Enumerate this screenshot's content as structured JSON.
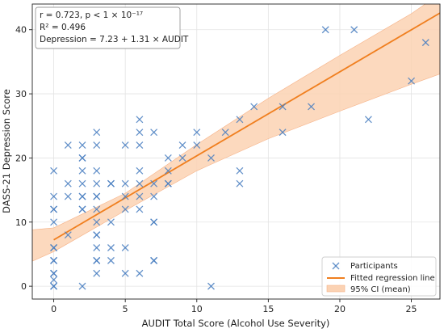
{
  "chart_data": {
    "type": "scatter",
    "xlabel": "AUDIT Total Score (Alcohol Use Severity)",
    "ylabel": "DASS-21 Depression Score",
    "xlim": [
      -1.5,
      27
    ],
    "ylim": [
      -2,
      44
    ],
    "xticks": [
      0,
      5,
      10,
      15,
      20,
      25
    ],
    "yticks": [
      0,
      10,
      20,
      30,
      40
    ],
    "grid": true,
    "legend_position": "bottom-right",
    "colors": {
      "points": "#4a7fc1",
      "line": "#f07f1f",
      "band": "#fbd2b3",
      "band_edge": "#f6b287"
    },
    "stats_box": {
      "line1": "r = 0.723, p < 1 × 10⁻¹⁷",
      "line2": "R² = 0.496",
      "line3": "Depression = 7.23 + 1.31 × AUDIT"
    },
    "regression": {
      "intercept": 7.23,
      "slope": 1.31
    },
    "confidence_band": {
      "x": [
        -1.5,
        0,
        5,
        10,
        15,
        20,
        25,
        27
      ],
      "lower": [
        3.9,
        5.4,
        11.8,
        18.0,
        23.0,
        27.3,
        31.5,
        33.1
      ],
      "upper": [
        8.8,
        9.1,
        14.5,
        22.1,
        29.3,
        36.0,
        42.5,
        45.6
      ]
    },
    "legend": {
      "points": "Participants",
      "line": "Fitted regression line",
      "band": "95% CI (mean)"
    },
    "points": [
      [
        0,
        0
      ],
      [
        0,
        0
      ],
      [
        0,
        1
      ],
      [
        0,
        2
      ],
      [
        0,
        2
      ],
      [
        0,
        4
      ],
      [
        0,
        4
      ],
      [
        0,
        6
      ],
      [
        0,
        6
      ],
      [
        0,
        10
      ],
      [
        0,
        12
      ],
      [
        0,
        12
      ],
      [
        0,
        14
      ],
      [
        0,
        18
      ],
      [
        1,
        8
      ],
      [
        1,
        14
      ],
      [
        1,
        16
      ],
      [
        1,
        22
      ],
      [
        2,
        0
      ],
      [
        2,
        12
      ],
      [
        2,
        12
      ],
      [
        2,
        14
      ],
      [
        2,
        14
      ],
      [
        2,
        16
      ],
      [
        2,
        18
      ],
      [
        2,
        20
      ],
      [
        2,
        20
      ],
      [
        2,
        22
      ],
      [
        3,
        2
      ],
      [
        3,
        4
      ],
      [
        3,
        4
      ],
      [
        3,
        6
      ],
      [
        3,
        8
      ],
      [
        3,
        8
      ],
      [
        3,
        10
      ],
      [
        3,
        12
      ],
      [
        3,
        14
      ],
      [
        3,
        14
      ],
      [
        3,
        16
      ],
      [
        3,
        18
      ],
      [
        3,
        22
      ],
      [
        3,
        24
      ],
      [
        4,
        4
      ],
      [
        4,
        6
      ],
      [
        4,
        10
      ],
      [
        4,
        16
      ],
      [
        4,
        16
      ],
      [
        5,
        2
      ],
      [
        5,
        6
      ],
      [
        5,
        12
      ],
      [
        5,
        14
      ],
      [
        5,
        16
      ],
      [
        5,
        22
      ],
      [
        6,
        2
      ],
      [
        6,
        12
      ],
      [
        6,
        14
      ],
      [
        6,
        16
      ],
      [
        6,
        18
      ],
      [
        6,
        22
      ],
      [
        6,
        24
      ],
      [
        6,
        26
      ],
      [
        7,
        4
      ],
      [
        7,
        4
      ],
      [
        7,
        10
      ],
      [
        7,
        10
      ],
      [
        7,
        14
      ],
      [
        7,
        16
      ],
      [
        7,
        24
      ],
      [
        8,
        16
      ],
      [
        8,
        16
      ],
      [
        8,
        18
      ],
      [
        8,
        20
      ],
      [
        9,
        20
      ],
      [
        9,
        22
      ],
      [
        10,
        22
      ],
      [
        10,
        24
      ],
      [
        11,
        0
      ],
      [
        11,
        20
      ],
      [
        12,
        24
      ],
      [
        13,
        16
      ],
      [
        13,
        18
      ],
      [
        13,
        26
      ],
      [
        14,
        28
      ],
      [
        16,
        24
      ],
      [
        16,
        28
      ],
      [
        18,
        28
      ],
      [
        19,
        40
      ],
      [
        21,
        40
      ],
      [
        22,
        26
      ],
      [
        25,
        32
      ],
      [
        26,
        38
      ]
    ]
  }
}
